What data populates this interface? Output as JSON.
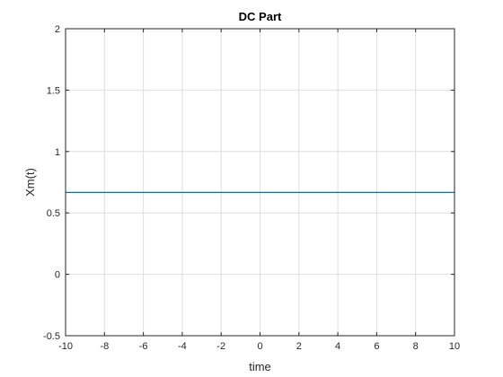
{
  "chart_data": {
    "type": "line",
    "title": "DC Part",
    "xlabel": "time",
    "ylabel": "Xm(t)",
    "xlim": [
      -10,
      10
    ],
    "ylim": [
      -0.5,
      2
    ],
    "xticks": [
      -10,
      -8,
      -6,
      -4,
      -2,
      0,
      2,
      4,
      6,
      8,
      10
    ],
    "xtick_labels": [
      "-10",
      "-8",
      "-6",
      "-4",
      "-2",
      "0",
      "2",
      "4",
      "6",
      "8",
      "10"
    ],
    "yticks": [
      -0.5,
      0,
      0.5,
      1,
      1.5,
      2
    ],
    "ytick_labels": [
      "-0.5",
      "0",
      "0.5",
      "1",
      "1.5",
      "2"
    ],
    "grid": true,
    "series": [
      {
        "x": [
          -10,
          10
        ],
        "y": [
          0.667,
          0.667
        ],
        "color": "#0072BD"
      }
    ]
  }
}
